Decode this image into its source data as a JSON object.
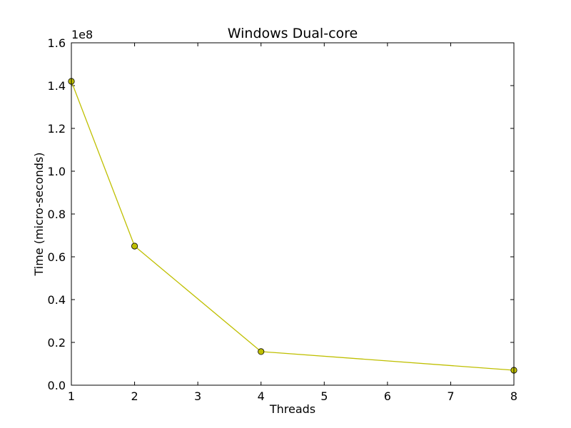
{
  "chart_data": {
    "type": "line",
    "title": "Windows Dual-core",
    "xlabel": "Threads",
    "ylabel": "Time (micro-seconds)",
    "y_offset_label": "1e8",
    "xlim": [
      1,
      8
    ],
    "ylim": [
      0,
      1.6
    ],
    "x_ticks": [
      1,
      2,
      3,
      4,
      5,
      6,
      7,
      8
    ],
    "x_tick_labels": [
      "1",
      "2",
      "3",
      "4",
      "5",
      "6",
      "7",
      "8"
    ],
    "y_ticks": [
      0.0,
      0.2,
      0.4,
      0.6,
      0.8,
      1.0,
      1.2,
      1.4,
      1.6
    ],
    "y_tick_labels": [
      "0.0",
      "0.2",
      "0.4",
      "0.6",
      "0.8",
      "1.0",
      "1.2",
      "1.4",
      "1.6"
    ],
    "grid": false,
    "series": [
      {
        "x": [
          1,
          2,
          4,
          8
        ],
        "values": [
          1.42,
          0.65,
          0.157,
          0.07
        ],
        "line_color": "#bfbf00",
        "marker": "circle",
        "marker_fill": "#bfbf00",
        "marker_edge": "#000000"
      }
    ]
  }
}
